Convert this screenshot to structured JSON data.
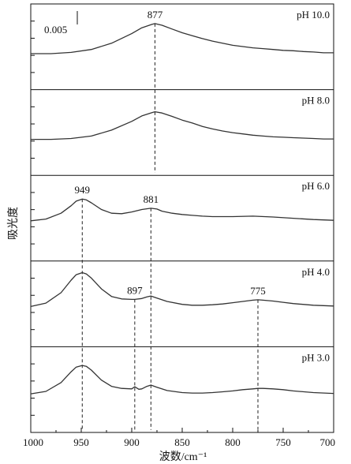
{
  "chart_data": {
    "type": "line",
    "title": "",
    "xlabel": "波数/cm⁻¹",
    "ylabel": "吸光度",
    "xlim": [
      1000,
      700
    ],
    "x_reversed": true,
    "x_ticks": [
      1000,
      950,
      900,
      850,
      800,
      750,
      700
    ],
    "x_tick_labels": [
      "1000",
      "950",
      "900",
      "850",
      "800",
      "750",
      "700"
    ],
    "scale_bar_label": "0.005",
    "scale_bar_value": 0.005,
    "panels": [
      {
        "name": "pH 10.0",
        "ylim": [
          -0.002,
          0.016
        ],
        "x": [
          1000,
          980,
          960,
          940,
          920,
          900,
          890,
          880,
          877,
          870,
          860,
          850,
          840,
          830,
          820,
          810,
          800,
          790,
          780,
          770,
          760,
          750,
          740,
          730,
          720,
          710,
          700
        ],
        "y": [
          0.0,
          0.0,
          0.0003,
          0.001,
          0.0025,
          0.0048,
          0.0062,
          0.007,
          0.0072,
          0.0068,
          0.0059,
          0.005,
          0.0043,
          0.0036,
          0.003,
          0.0025,
          0.002,
          0.0017,
          0.0014,
          0.0012,
          0.001,
          0.0008,
          0.0007,
          0.0005,
          0.0004,
          0.0002,
          0.0002
        ],
        "peak_labels": [
          {
            "x": 877,
            "label": "877"
          }
        ]
      },
      {
        "name": "pH 8.0",
        "ylim": [
          -0.002,
          0.016
        ],
        "x": [
          1000,
          980,
          960,
          940,
          920,
          900,
          890,
          880,
          877,
          870,
          860,
          850,
          840,
          830,
          820,
          810,
          800,
          790,
          780,
          770,
          760,
          750,
          740,
          730,
          720,
          710,
          700
        ],
        "y": [
          0.0,
          0.0,
          0.0002,
          0.0008,
          0.0022,
          0.0043,
          0.0056,
          0.0064,
          0.0066,
          0.0063,
          0.0055,
          0.0046,
          0.0039,
          0.0031,
          0.0025,
          0.002,
          0.0016,
          0.0013,
          0.001,
          0.0008,
          0.0006,
          0.0005,
          0.0004,
          0.0003,
          0.0002,
          0.0001,
          0.0001
        ],
        "peak_labels": []
      },
      {
        "name": "pH 6.0",
        "ylim": [
          -0.002,
          0.016
        ],
        "x": [
          1000,
          985,
          970,
          960,
          955,
          949,
          945,
          940,
          930,
          920,
          910,
          900,
          890,
          881,
          875,
          870,
          860,
          850,
          840,
          830,
          820,
          800,
          780,
          760,
          740,
          720,
          700
        ],
        "y": [
          0.0,
          0.0004,
          0.0018,
          0.0036,
          0.0047,
          0.0052,
          0.005,
          0.0043,
          0.0027,
          0.0018,
          0.0017,
          0.0021,
          0.0027,
          0.003,
          0.0028,
          0.0023,
          0.0018,
          0.0015,
          0.0013,
          0.0011,
          0.001,
          0.001,
          0.0011,
          0.0009,
          0.0006,
          0.0003,
          0.0001
        ],
        "peak_labels": [
          {
            "x": 949,
            "label": "949"
          },
          {
            "x": 881,
            "label": "881"
          }
        ]
      },
      {
        "name": "pH 4.0",
        "ylim": [
          -0.002,
          0.016
        ],
        "x": [
          1000,
          985,
          970,
          960,
          955,
          949,
          945,
          940,
          930,
          920,
          910,
          900,
          897,
          890,
          885,
          881,
          875,
          865,
          850,
          840,
          830,
          820,
          810,
          800,
          790,
          780,
          775,
          770,
          760,
          750,
          740,
          720,
          700
        ],
        "y": [
          0.0,
          0.0008,
          0.0033,
          0.0063,
          0.0076,
          0.0081,
          0.0078,
          0.0068,
          0.0042,
          0.0024,
          0.0018,
          0.0017,
          0.0017,
          0.0019,
          0.0023,
          0.0025,
          0.002,
          0.0012,
          0.0005,
          0.0003,
          0.0003,
          0.0004,
          0.0006,
          0.0009,
          0.0012,
          0.0015,
          0.0016,
          0.0015,
          0.0013,
          0.001,
          0.0007,
          0.0003,
          0.0001
        ],
        "peak_labels": [
          {
            "x": 897,
            "label": "897"
          },
          {
            "x": 775,
            "label": "775"
          }
        ]
      },
      {
        "name": "pH 3.0",
        "ylim": [
          -0.002,
          0.016
        ],
        "x": [
          1000,
          985,
          970,
          960,
          955,
          949,
          945,
          940,
          930,
          920,
          910,
          900,
          897,
          893,
          890,
          885,
          881,
          875,
          865,
          850,
          840,
          830,
          820,
          810,
          800,
          790,
          780,
          775,
          770,
          760,
          750,
          740,
          720,
          700
        ],
        "y": [
          0.0,
          0.0006,
          0.0027,
          0.0053,
          0.0064,
          0.0068,
          0.0066,
          0.0057,
          0.0033,
          0.0018,
          0.0013,
          0.0012,
          0.0017,
          0.0011,
          0.0012,
          0.0018,
          0.0021,
          0.0016,
          0.0008,
          0.0003,
          0.0002,
          0.0002,
          0.0003,
          0.0005,
          0.0007,
          0.001,
          0.0012,
          0.0013,
          0.0013,
          0.0012,
          0.001,
          0.0007,
          0.0003,
          0.0001
        ],
        "peak_labels": []
      }
    ],
    "reference_lines": [
      {
        "x": 877,
        "from_panel": 0,
        "to_panel": 1
      },
      {
        "x": 949,
        "from_panel": 2,
        "to_panel": 4
      },
      {
        "x": 881,
        "from_panel": 2,
        "to_panel": 4
      },
      {
        "x": 897,
        "from_panel": 3,
        "to_panel": 4
      },
      {
        "x": 775,
        "from_panel": 3,
        "to_panel": 4
      }
    ],
    "grid": false,
    "legend": "none"
  }
}
